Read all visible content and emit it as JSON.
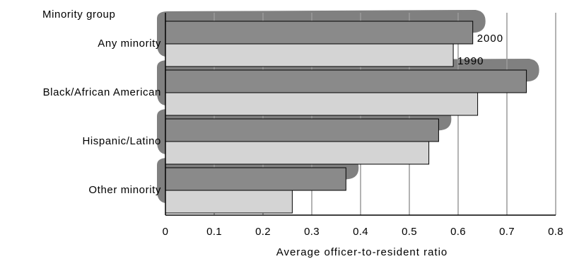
{
  "chart_data": {
    "type": "bar",
    "orientation": "horizontal",
    "ylabel": "Minority group",
    "xlabel": "Average officer-to-resident ratio",
    "categories": [
      "Any minority",
      "Black/African American",
      "Hispanic/Latino",
      "Other minority"
    ],
    "series": [
      {
        "name": "2000",
        "values": [
          0.63,
          0.74,
          0.56,
          0.37
        ],
        "color": "#8a8a8a"
      },
      {
        "name": "1990",
        "values": [
          0.59,
          0.64,
          0.54,
          0.26
        ],
        "color": "#d4d4d4"
      }
    ],
    "xlim": [
      0,
      0.8
    ],
    "xticks": [
      "0",
      "0.1",
      "0.2",
      "0.3",
      "0.4",
      "0.5",
      "0.6",
      "0.7",
      "0.8"
    ],
    "grid": true,
    "legend": "labels beside first category bars"
  }
}
